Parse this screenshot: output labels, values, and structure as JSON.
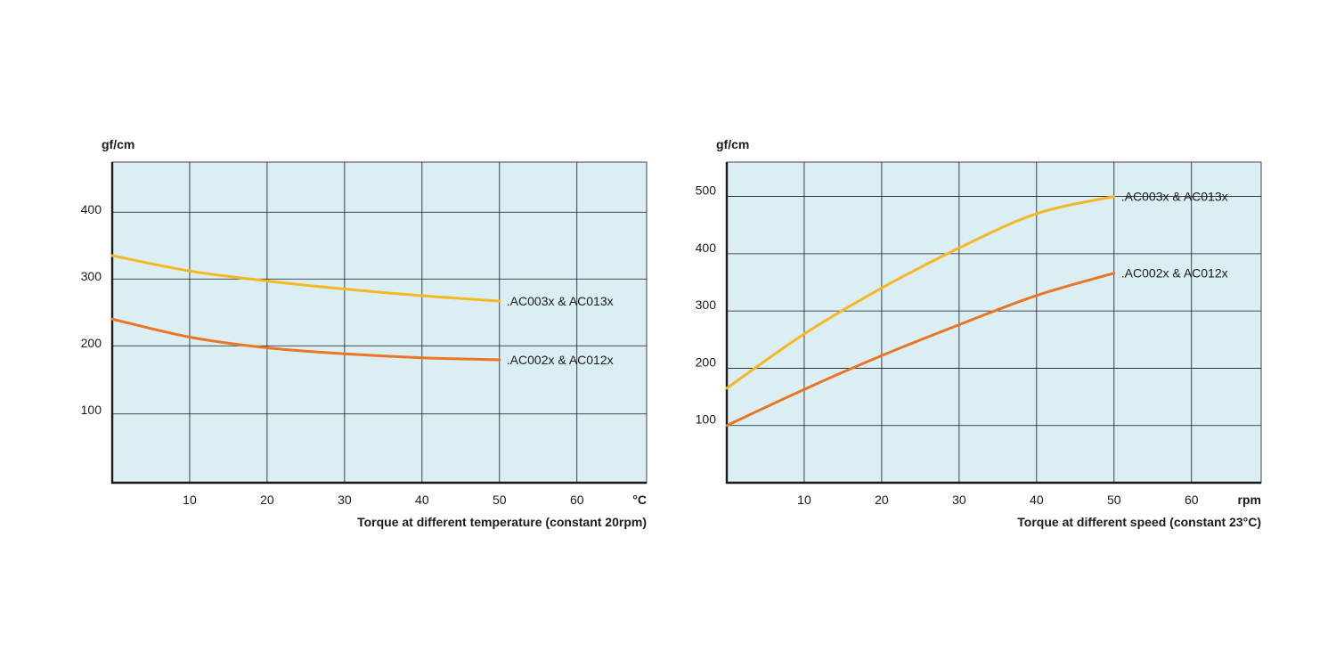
{
  "chart_data": [
    {
      "type": "line",
      "title": "Torque at different temperature (constant 20rpm)",
      "ylabel": "gf/cm",
      "xlabel": "°C",
      "xlim": [
        0,
        69
      ],
      "ylim": [
        0,
        480
      ],
      "x_ticks": [
        10,
        20,
        30,
        40,
        50,
        60
      ],
      "y_ticks": [
        100,
        200,
        300,
        400
      ],
      "x_grid": [
        10,
        20,
        30,
        40,
        50,
        60
      ],
      "y_grid": [
        103,
        205,
        305,
        405
      ],
      "grid": true,
      "series": [
        {
          "name": ".AC003x & AC013x",
          "color": "#f5b824",
          "x": [
            0,
            10,
            20,
            30,
            40,
            50
          ],
          "y": [
            340,
            317,
            302,
            290,
            280,
            272
          ]
        },
        {
          "name": ".AC002x & AC012x",
          "color": "#eb7524",
          "x": [
            0,
            10,
            20,
            30,
            40,
            50
          ],
          "y": [
            245,
            218,
            202,
            193,
            187,
            184
          ]
        }
      ]
    },
    {
      "type": "line",
      "title": "Torque at different speed (constant 23°C)",
      "ylabel": "gf/cm",
      "xlabel": "rpm",
      "xlim": [
        0,
        69
      ],
      "ylim": [
        0,
        560
      ],
      "x_ticks": [
        10,
        20,
        30,
        40,
        50,
        60
      ],
      "y_ticks": [
        100,
        200,
        300,
        400,
        500
      ],
      "x_grid": [
        10,
        20,
        30,
        40,
        50,
        60
      ],
      "y_grid": [
        100,
        200,
        300,
        400,
        500
      ],
      "grid": true,
      "series": [
        {
          "name": ".AC003x & AC013x",
          "color": "#f5b824",
          "x": [
            0,
            10,
            20,
            30,
            40,
            50
          ],
          "y": [
            165,
            260,
            340,
            410,
            470,
            500
          ]
        },
        {
          "name": ".AC002x & AC012x",
          "color": "#eb7524",
          "x": [
            0,
            10,
            20,
            30,
            40,
            50
          ],
          "y": [
            100,
            163,
            222,
            276,
            327,
            366
          ]
        }
      ]
    }
  ]
}
